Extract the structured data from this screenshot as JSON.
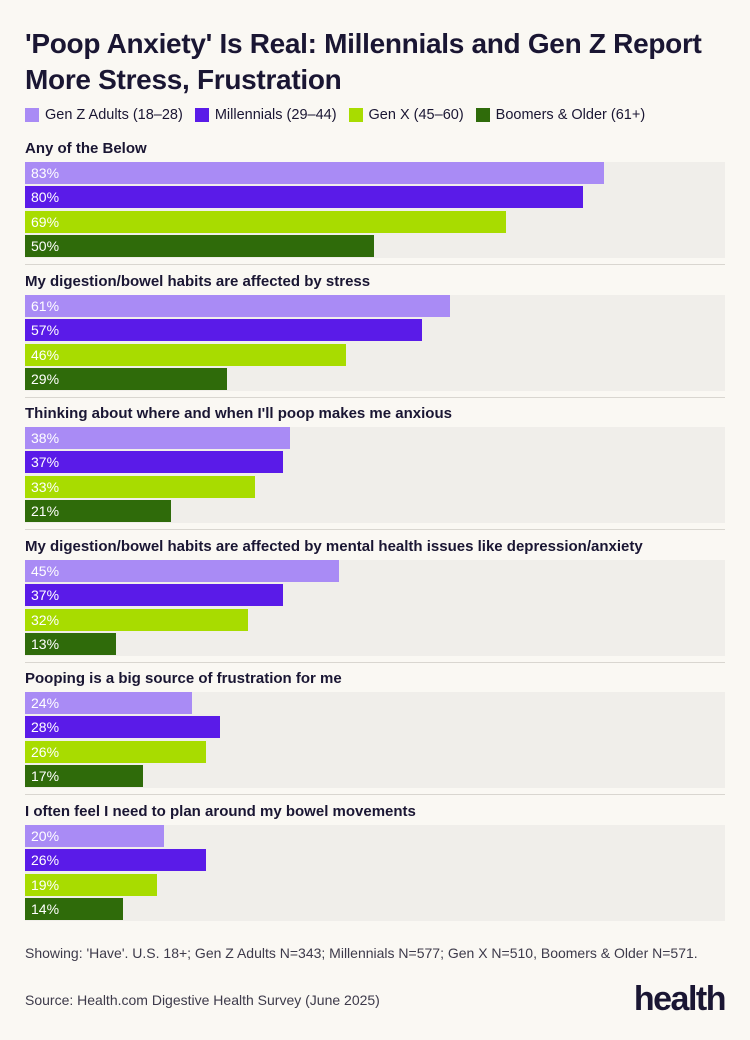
{
  "title": "'Poop Anxiety' Is Real: Millennials and Gen Z Report More Stress, Frustration",
  "chart_data": {
    "type": "bar",
    "orientation": "horizontal",
    "title": "'Poop Anxiety' Is Real: Millennials and Gen Z Report More Stress, Frustration",
    "value_suffix": "%",
    "xlim": [
      0,
      100
    ],
    "grid": false,
    "legend_position": "top",
    "series": [
      {
        "name": "Gen Z Adults (18–28)",
        "color": "#a98bf5",
        "values": [
          83,
          61,
          38,
          45,
          24,
          20
        ]
      },
      {
        "name": "Millennials (29–44)",
        "color": "#5a1be8",
        "values": [
          80,
          57,
          37,
          37,
          28,
          26
        ]
      },
      {
        "name": "Gen X (45–60)",
        "color": "#a8dc00",
        "values": [
          69,
          46,
          33,
          32,
          26,
          19
        ]
      },
      {
        "name": "Boomers & Older (61+)",
        "color": "#2f6b0a",
        "values": [
          50,
          29,
          21,
          13,
          17,
          14
        ]
      }
    ],
    "categories": [
      "Any of the Below",
      "My digestion/bowel habits are affected by stress",
      "Thinking about where and when I'll poop makes me anxious",
      "My digestion/bowel habits are affected by mental health issues like depression/anxiety",
      "Pooping is a big source of frustration for me",
      "I often feel I need to plan around my bowel movements"
    ]
  },
  "footer": {
    "note": "Showing: 'Have'. U.S. 18+; Gen Z Adults N=343; Millennials N=577; Gen X N=510, Boomers & Older N=571.",
    "source": "Source: Health.com Digestive Health Survey (June 2025)",
    "brand": "health"
  }
}
